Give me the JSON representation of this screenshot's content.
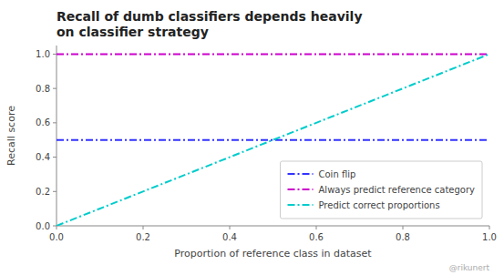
{
  "chart_data": {
    "type": "line",
    "title": "Recall of dumb classifiers depends heavily\non classifier strategy",
    "x_label": "Proportion of reference class in dataset",
    "y_label": "Recall score",
    "annotations": [
      "@rikunert"
    ],
    "x": [
      0.0,
      1.0
    ],
    "series": [
      {
        "name": "Coin flip",
        "color": "#3333ff",
        "line_style": "dash-dot",
        "values": [
          0.5,
          0.5
        ]
      },
      {
        "name": "Always predict reference category",
        "color": "#cc00cc",
        "line_style": "dash-dot",
        "values": [
          1.0,
          1.0
        ]
      },
      {
        "name": "Predict correct proportions",
        "color": "#00cccc",
        "line_style": "dash-dot",
        "values": [
          0.0,
          1.0
        ]
      }
    ],
    "xlim": [
      0.0,
      1.0
    ],
    "ylim": [
      0.0,
      1.05
    ],
    "xticks": [
      {
        "value": 0,
        "label": "0.0"
      },
      0.2,
      0.4,
      0.6,
      0.8,
      {
        "value": 1,
        "label": "1.0"
      }
    ],
    "yticks": [
      {
        "value": 0,
        "label": "0.0"
      },
      0.2,
      0.4,
      0.6,
      0.8,
      {
        "value": 1,
        "label": "1.0"
      }
    ],
    "grid": false,
    "legend": "lower right"
  }
}
